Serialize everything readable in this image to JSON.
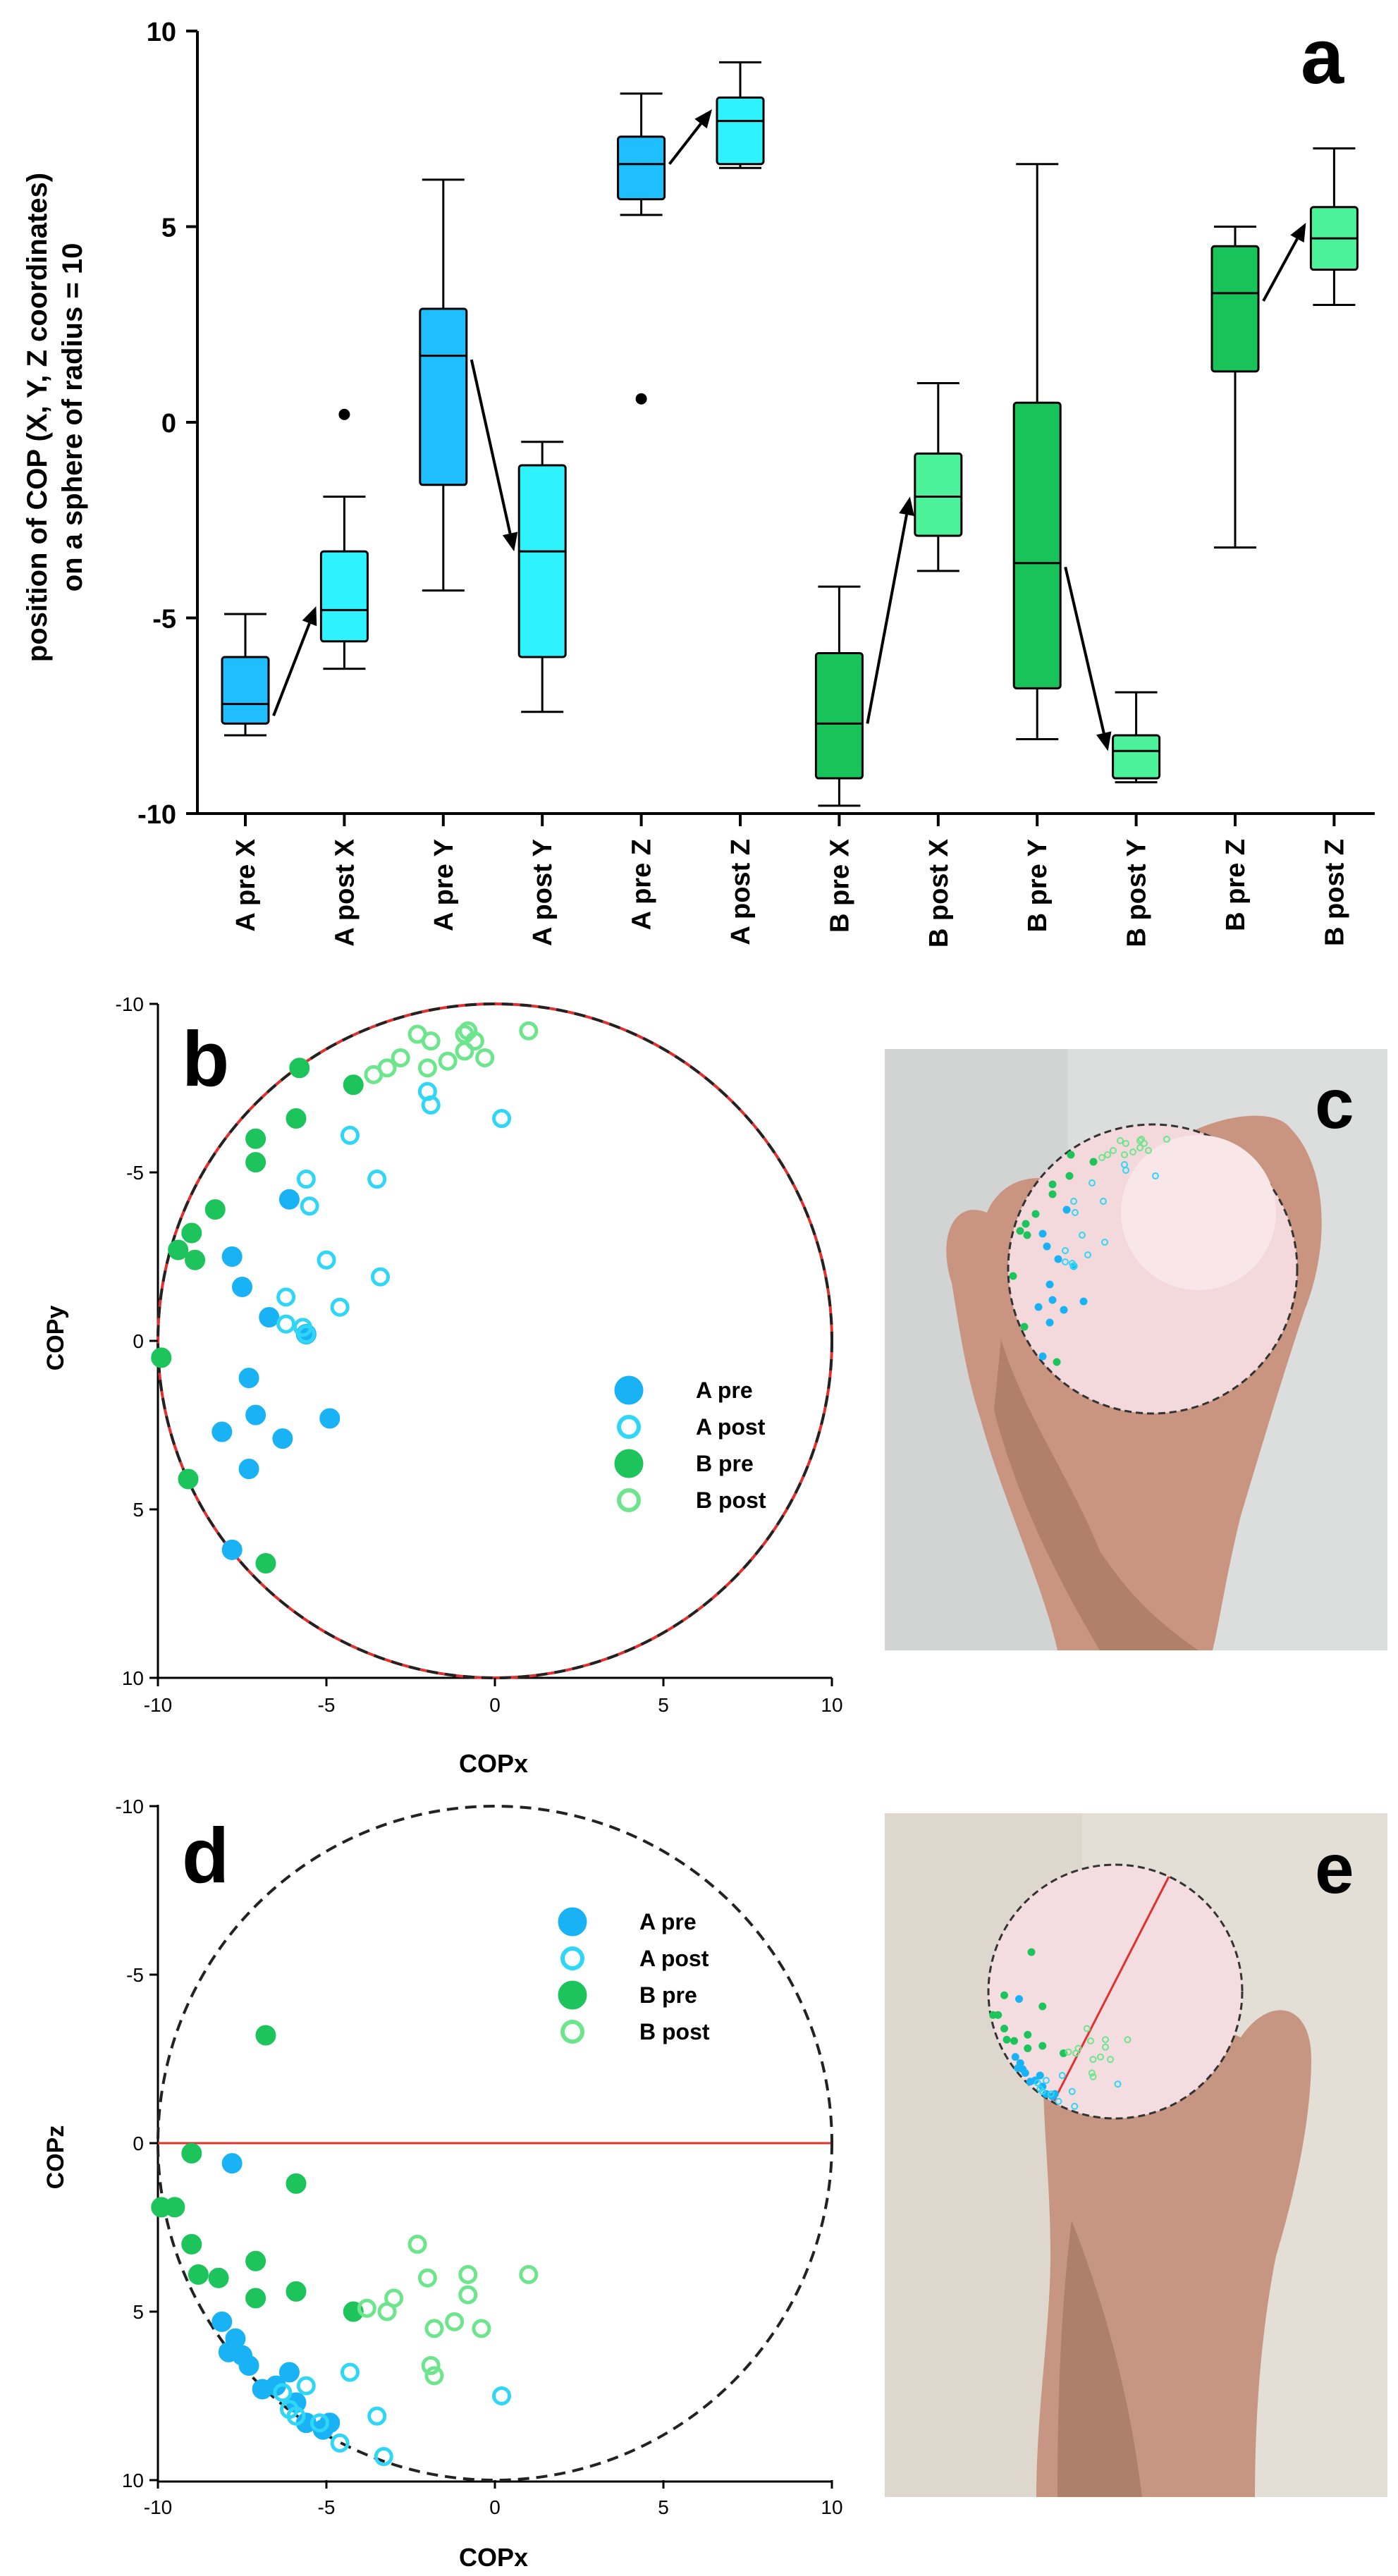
{
  "colors": {
    "a_box": "#1fbfff",
    "a_post_box": "#2ff2ff",
    "b_box": "#18c35a",
    "b_post_box": "#4cf29a",
    "a_pre_pt": "#19b2f5",
    "a_post_pt": "#2fd6f5",
    "b_pre_pt": "#1dc45c",
    "b_post_pt": "#6ce58c",
    "circle_border": "#222222",
    "red_line": "#e0302f"
  },
  "chart_data": [
    {
      "panel": "a",
      "type": "box",
      "ylabel_line1": "position of COP (X, Y, Z coordinates)",
      "ylabel_line2": "on a sphere of radius = 10",
      "ylim": [
        -10,
        10
      ],
      "yticks": [
        10,
        5,
        0,
        -5,
        -10
      ],
      "categories": [
        "A pre X",
        "A post X",
        "A pre Y",
        "A post Y",
        "A pre Z",
        "A post Z",
        "B pre X",
        "B post X",
        "B pre Y",
        "B post Y",
        "B pre Z",
        "B post Z"
      ],
      "boxes": [
        {
          "label": "A pre X",
          "min": -8.0,
          "q1": -7.7,
          "median": -7.2,
          "q3": -6.0,
          "max": -4.9,
          "outliers": [],
          "group": "a"
        },
        {
          "label": "A post X",
          "min": -6.3,
          "q1": -5.6,
          "median": -4.8,
          "q3": -3.3,
          "max": -1.9,
          "outliers": [
            0.2
          ],
          "group": "a_post"
        },
        {
          "label": "A pre Y",
          "min": -4.3,
          "q1": -1.6,
          "median": 1.7,
          "q3": 2.9,
          "max": 6.2,
          "outliers": [],
          "group": "a"
        },
        {
          "label": "A post Y",
          "min": -7.4,
          "q1": -6.0,
          "median": -3.3,
          "q3": -1.1,
          "max": -0.5,
          "outliers": [],
          "group": "a_post"
        },
        {
          "label": "A pre Z",
          "min": 5.3,
          "q1": 5.7,
          "median": 6.6,
          "q3": 7.3,
          "max": 8.4,
          "outliers": [
            0.6
          ],
          "group": "a"
        },
        {
          "label": "A post Z",
          "min": 6.5,
          "q1": 6.6,
          "median": 7.7,
          "q3": 8.3,
          "max": 9.2,
          "outliers": [],
          "group": "a_post"
        },
        {
          "label": "B pre X",
          "min": -9.8,
          "q1": -9.1,
          "median": -7.7,
          "q3": -5.9,
          "max": -4.2,
          "outliers": [],
          "group": "b"
        },
        {
          "label": "B post X",
          "min": -3.8,
          "q1": -2.9,
          "median": -1.9,
          "q3": -0.8,
          "max": 1.0,
          "outliers": [],
          "group": "b_post"
        },
        {
          "label": "B pre Y",
          "min": -8.1,
          "q1": -6.8,
          "median": -3.6,
          "q3": 0.5,
          "max": 6.6,
          "outliers": [],
          "group": "b"
        },
        {
          "label": "B post Y",
          "min": -9.2,
          "q1": -9.1,
          "median": -8.4,
          "q3": -8.0,
          "max": -6.9,
          "outliers": [],
          "group": "b_post"
        },
        {
          "label": "B pre Z",
          "min": -3.2,
          "q1": 1.3,
          "median": 3.3,
          "q3": 4.5,
          "max": 5.0,
          "outliers": [],
          "group": "b"
        },
        {
          "label": "B post Z",
          "min": 3.0,
          "q1": 3.9,
          "median": 4.7,
          "q3": 5.5,
          "max": 7.0,
          "outliers": [],
          "group": "b_post"
        }
      ],
      "arrows": [
        {
          "from_cat": 0,
          "from_y": -7.5,
          "to_cat": 1,
          "to_y": -4.7
        },
        {
          "from_cat": 2,
          "from_y": 1.6,
          "to_cat": 3,
          "to_y": -3.3
        },
        {
          "from_cat": 4,
          "from_y": 6.6,
          "to_cat": 5,
          "to_y": 8.0
        },
        {
          "from_cat": 6,
          "from_y": -7.7,
          "to_cat": 7,
          "to_y": -1.9
        },
        {
          "from_cat": 8,
          "from_y": -3.7,
          "to_cat": 9,
          "to_y": -8.4
        },
        {
          "from_cat": 10,
          "from_y": 3.1,
          "to_cat": 11,
          "to_y": 5.1
        }
      ]
    },
    {
      "panel": "b",
      "type": "scatter",
      "xlabel": "COPx",
      "ylabel": "COPy",
      "xlim": [
        -10,
        10
      ],
      "ylim": [
        -10,
        10
      ],
      "y_inverted": true,
      "xticks": [
        -10,
        -5,
        0,
        5,
        10
      ],
      "yticks": [
        -10,
        -5,
        0,
        5,
        10
      ],
      "circle_radius": 10,
      "legend": [
        "A pre",
        "A post",
        "B pre",
        "B post"
      ],
      "series": [
        {
          "name": "A pre",
          "style": "filled",
          "points": [
            [
              -7.8,
              -2.5
            ],
            [
              -7.5,
              -1.6
            ],
            [
              -6.1,
              -4.2
            ],
            [
              -6.7,
              -0.7
            ],
            [
              -7.3,
              1.1
            ],
            [
              -8.1,
              2.7
            ],
            [
              -7.1,
              2.2
            ],
            [
              -6.3,
              2.9
            ],
            [
              -7.3,
              3.8
            ],
            [
              -7.8,
              6.2
            ],
            [
              -4.9,
              2.3
            ],
            [
              -5.6,
              -0.2
            ]
          ]
        },
        {
          "name": "A post",
          "style": "hollow",
          "points": [
            [
              -5.6,
              -4.8
            ],
            [
              -5.5,
              -4.0
            ],
            [
              -4.3,
              -6.1
            ],
            [
              -3.5,
              -4.8
            ],
            [
              -5.0,
              -2.4
            ],
            [
              -6.2,
              -1.3
            ],
            [
              -6.2,
              -0.5
            ],
            [
              -5.7,
              -0.4
            ],
            [
              -5.6,
              -0.2
            ],
            [
              -4.6,
              -1.0
            ],
            [
              -3.4,
              -1.9
            ],
            [
              0.2,
              -6.6
            ],
            [
              -1.9,
              -7.0
            ],
            [
              -2.0,
              -7.4
            ]
          ]
        },
        {
          "name": "B pre",
          "style": "filled",
          "points": [
            [
              -5.8,
              -8.1
            ],
            [
              -4.2,
              -7.6
            ],
            [
              -5.9,
              -6.6
            ],
            [
              -7.1,
              -6.0
            ],
            [
              -7.1,
              -5.3
            ],
            [
              -8.3,
              -3.9
            ],
            [
              -9.4,
              -2.7
            ],
            [
              -9.0,
              -3.2
            ],
            [
              -8.9,
              -2.4
            ],
            [
              -9.9,
              0.5
            ],
            [
              -9.1,
              4.1
            ],
            [
              -6.8,
              6.6
            ]
          ]
        },
        {
          "name": "B post",
          "style": "hollow",
          "points": [
            [
              -2.3,
              -9.1
            ],
            [
              -1.9,
              -8.9
            ],
            [
              -0.9,
              -9.1
            ],
            [
              -0.8,
              -9.2
            ],
            [
              -0.6,
              -8.9
            ],
            [
              -0.3,
              -8.4
            ],
            [
              -1.4,
              -8.3
            ],
            [
              -2.0,
              -8.1
            ],
            [
              -2.8,
              -8.4
            ],
            [
              -3.2,
              -8.1
            ],
            [
              -3.6,
              -7.9
            ],
            [
              1.0,
              -9.2
            ],
            [
              -0.9,
              -8.6
            ]
          ]
        }
      ]
    },
    {
      "panel": "d",
      "type": "scatter",
      "xlabel": "COPx",
      "ylabel": "COPz",
      "xlim": [
        -10,
        10
      ],
      "ylim": [
        -10,
        10
      ],
      "y_inverted": true,
      "xticks": [
        -10,
        -5,
        0,
        5,
        10
      ],
      "yticks": [
        -10,
        -5,
        0,
        5,
        10
      ],
      "circle_radius": 10,
      "reference_line_y": 0,
      "legend": [
        "A pre",
        "A post",
        "B pre",
        "B post"
      ],
      "series": [
        {
          "name": "A pre",
          "style": "filled",
          "points": [
            [
              -7.8,
              0.6
            ],
            [
              -8.1,
              5.3
            ],
            [
              -7.7,
              5.8
            ],
            [
              -7.5,
              6.3
            ],
            [
              -7.9,
              6.2
            ],
            [
              -7.3,
              6.6
            ],
            [
              -6.9,
              7.3
            ],
            [
              -6.5,
              7.2
            ],
            [
              -6.1,
              6.8
            ],
            [
              -5.9,
              7.7
            ],
            [
              -5.6,
              8.3
            ],
            [
              -5.1,
              8.5
            ],
            [
              -4.9,
              8.3
            ]
          ]
        },
        {
          "name": "A post",
          "style": "hollow",
          "points": [
            [
              -6.3,
              7.4
            ],
            [
              -6.1,
              7.9
            ],
            [
              -5.6,
              7.2
            ],
            [
              -5.2,
              8.3
            ],
            [
              -4.6,
              8.9
            ],
            [
              -4.3,
              6.8
            ],
            [
              -3.5,
              8.1
            ],
            [
              -3.3,
              9.3
            ],
            [
              0.2,
              7.5
            ],
            [
              -5.9,
              8.1
            ]
          ]
        },
        {
          "name": "B pre",
          "style": "filled",
          "points": [
            [
              -6.8,
              -3.2
            ],
            [
              -9.9,
              1.9
            ],
            [
              -9.5,
              1.9
            ],
            [
              -9.0,
              0.3
            ],
            [
              -9.0,
              3.0
            ],
            [
              -8.8,
              3.9
            ],
            [
              -8.2,
              4.0
            ],
            [
              -7.1,
              3.5
            ],
            [
              -7.1,
              4.6
            ],
            [
              -5.9,
              1.2
            ],
            [
              -5.9,
              4.4
            ],
            [
              -4.2,
              5.0
            ]
          ]
        },
        {
          "name": "B post",
          "style": "hollow",
          "points": [
            [
              -3.8,
              4.9
            ],
            [
              -3.2,
              5.0
            ],
            [
              -3.0,
              4.6
            ],
            [
              -2.3,
              3.0
            ],
            [
              -2.0,
              4.0
            ],
            [
              -1.8,
              6.9
            ],
            [
              -1.9,
              6.6
            ],
            [
              -1.8,
              5.5
            ],
            [
              -1.2,
              5.3
            ],
            [
              -0.8,
              4.5
            ],
            [
              -0.8,
              3.9
            ],
            [
              -0.4,
              5.5
            ],
            [
              1.0,
              3.9
            ]
          ]
        }
      ]
    }
  ],
  "panels": {
    "a": {
      "letter": "a"
    },
    "b": {
      "letter": "b"
    },
    "c": {
      "letter": "c"
    },
    "d": {
      "letter": "d"
    },
    "e": {
      "letter": "e"
    }
  }
}
